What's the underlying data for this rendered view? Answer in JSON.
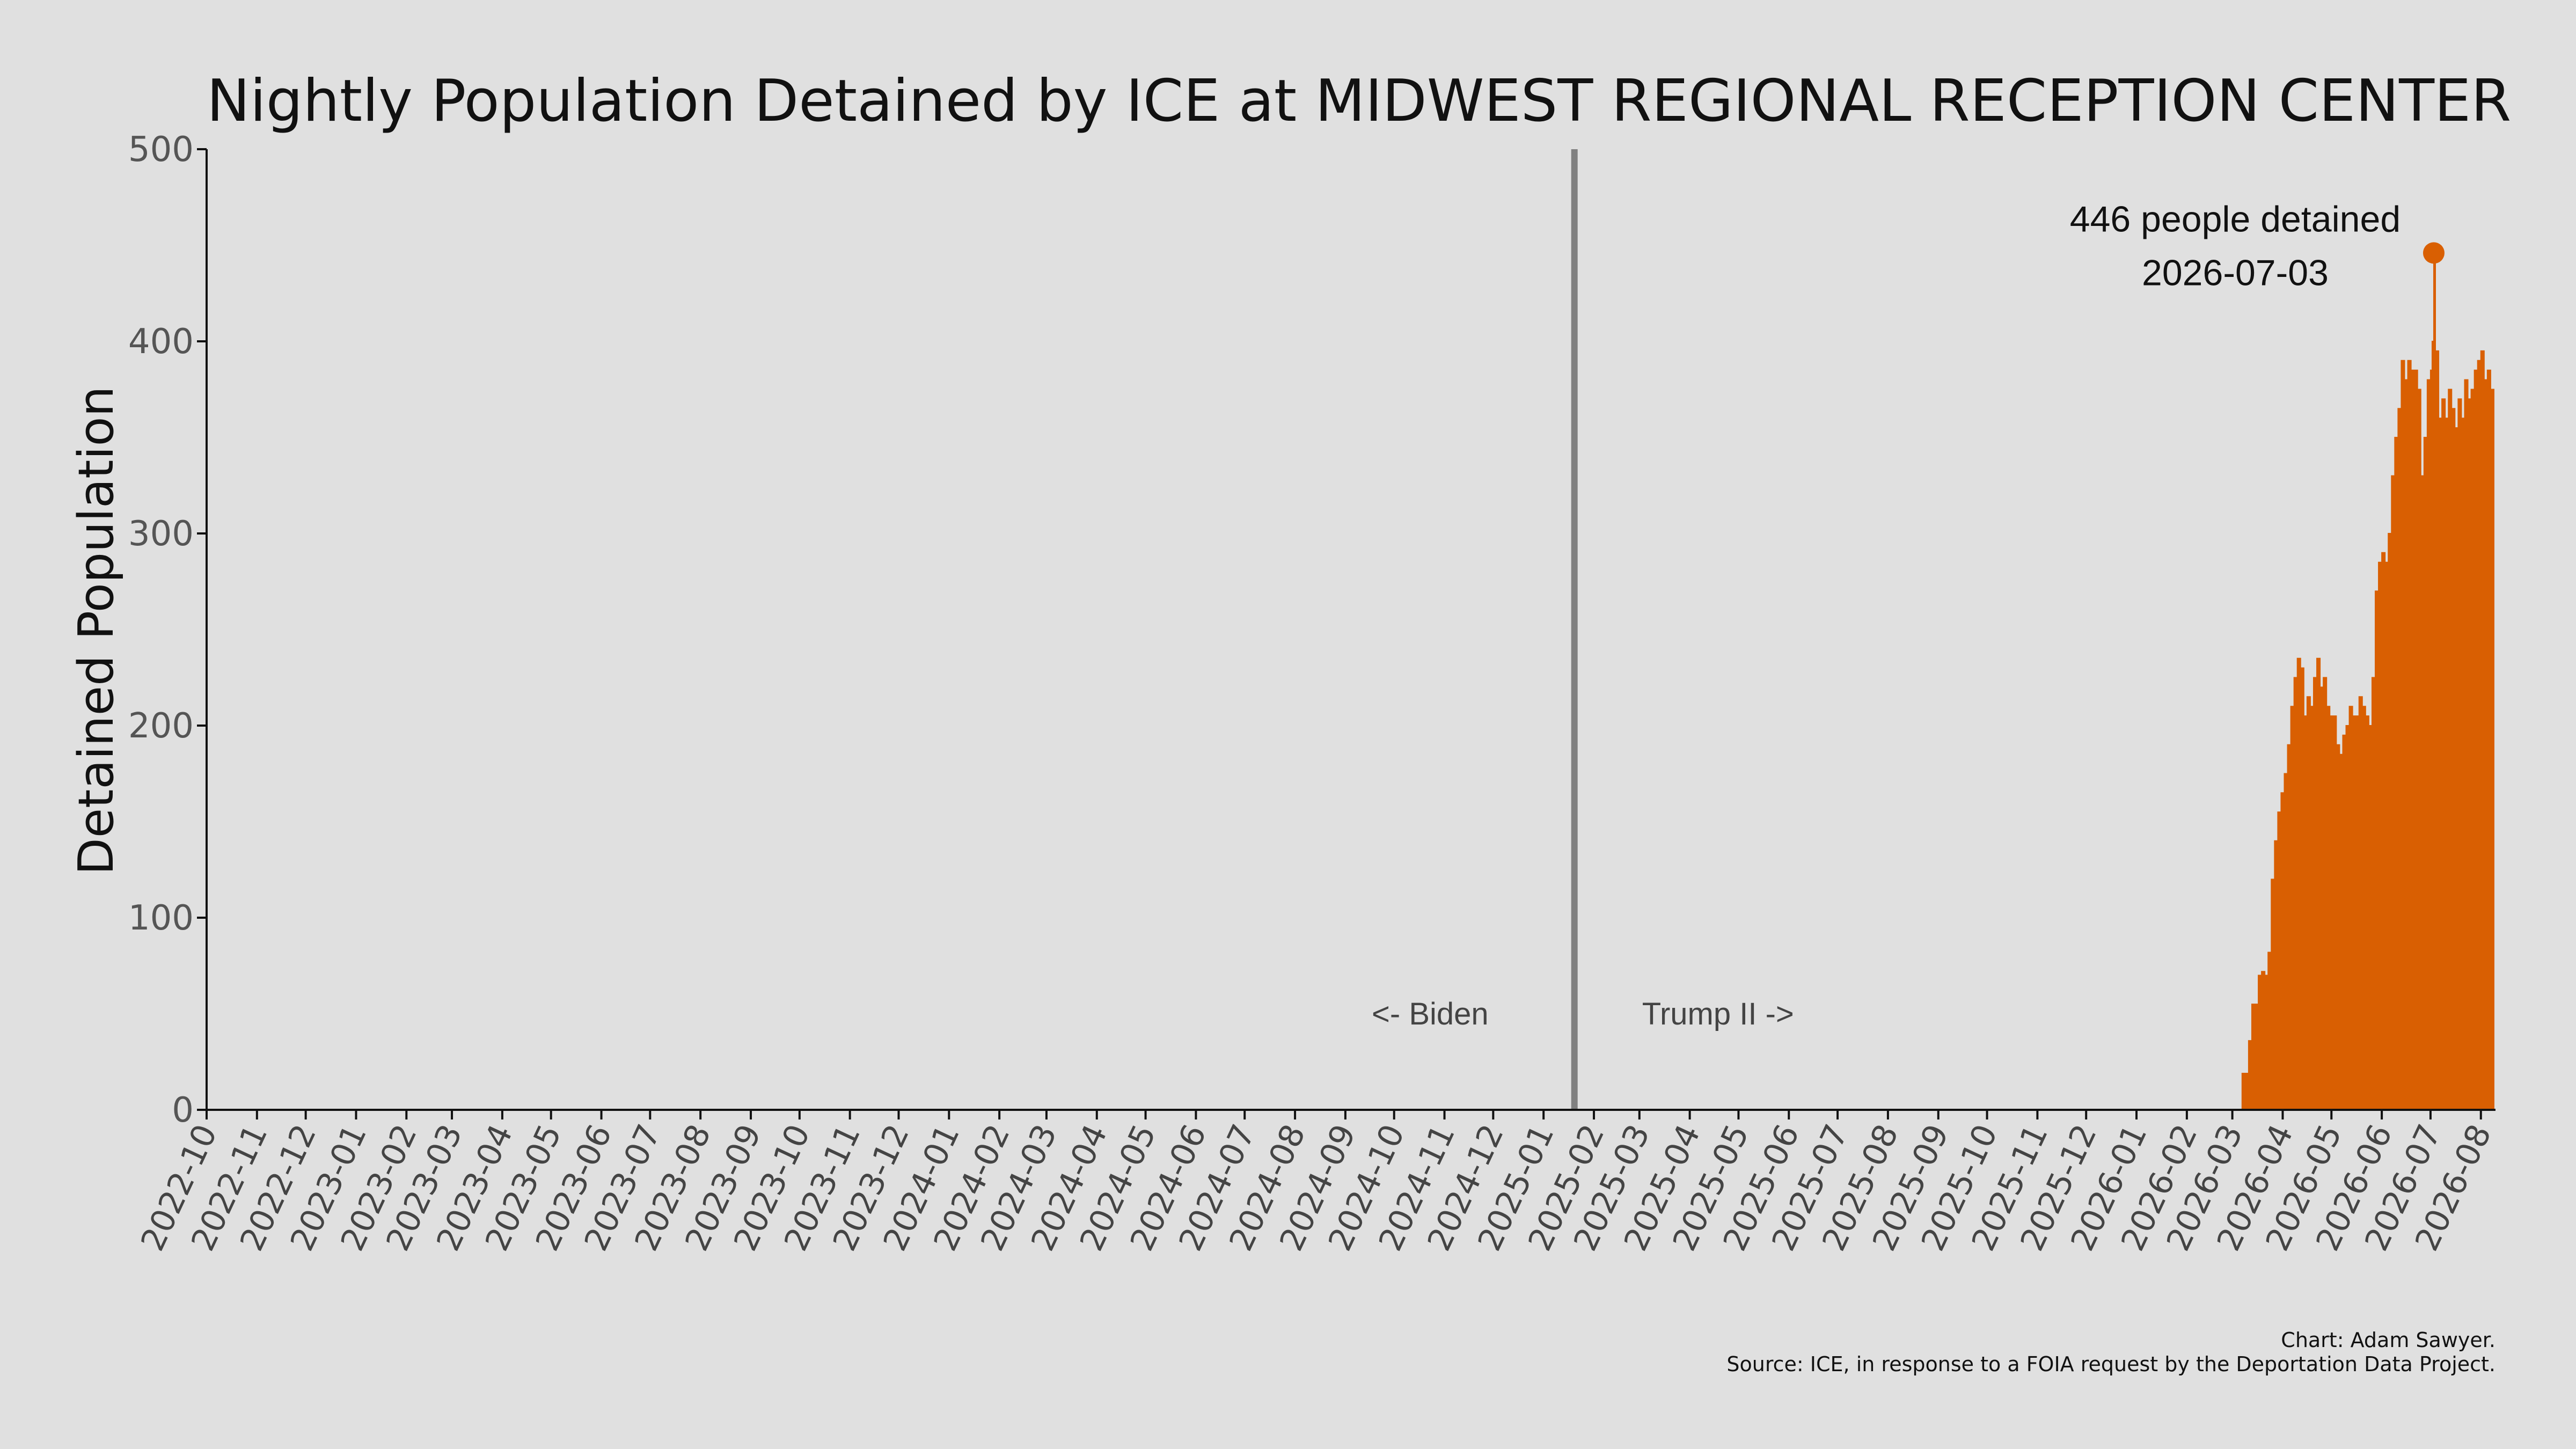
{
  "chart_data": {
    "type": "area",
    "title": "Nightly Population Detained by ICE at MIDWEST REGIONAL RECEPTION CENTER",
    "xlabel": "",
    "ylabel": "Detained Population",
    "ylim": [
      0,
      500
    ],
    "yticks": [
      0,
      100,
      200,
      300,
      400,
      500
    ],
    "x_start": "2022-10-01",
    "x_end": "2026-08-10",
    "xtick_labels": [
      "2022-10",
      "2022-11",
      "2022-12",
      "2023-01",
      "2023-02",
      "2023-03",
      "2023-04",
      "2023-05",
      "2023-06",
      "2023-07",
      "2023-08",
      "2023-09",
      "2023-10",
      "2023-11",
      "2023-12",
      "2024-01",
      "2024-02",
      "2024-03",
      "2024-04",
      "2024-05",
      "2024-06",
      "2024-07",
      "2024-08",
      "2024-09",
      "2024-10",
      "2024-11",
      "2024-12",
      "2025-01",
      "2025-02",
      "2025-03",
      "2025-04",
      "2025-05",
      "2025-06",
      "2025-07",
      "2025-08",
      "2025-09",
      "2025-10",
      "2025-11",
      "2025-12",
      "2026-01",
      "2026-02",
      "2026-03",
      "2026-04",
      "2026-05",
      "2026-06",
      "2026-07",
      "2026-08"
    ],
    "grid": false,
    "color": "#d95f02",
    "divider": {
      "date": "2025-01-20",
      "left_label": "<- Biden",
      "right_label": "Trump II ->",
      "color": "#808080"
    },
    "peak": {
      "date": "2026-07-03",
      "value": 446,
      "label_line1": "446 people detained",
      "label_line2": "2026-07-03"
    },
    "series": [
      {
        "x": [
          "2026-03-07",
          "2026-03-09",
          "2026-03-11",
          "2026-03-13",
          "2026-03-15",
          "2026-03-17",
          "2026-03-19",
          "2026-03-21",
          "2026-03-23",
          "2026-03-25",
          "2026-03-27",
          "2026-03-29",
          "2026-03-31",
          "2026-04-02",
          "2026-04-04",
          "2026-04-06",
          "2026-04-08",
          "2026-04-10",
          "2026-04-12",
          "2026-04-14",
          "2026-04-16",
          "2026-04-18",
          "2026-04-20",
          "2026-04-22",
          "2026-04-24",
          "2026-04-26",
          "2026-04-28",
          "2026-04-30",
          "2026-05-02",
          "2026-05-04",
          "2026-05-06",
          "2026-05-08",
          "2026-05-10",
          "2026-05-12",
          "2026-05-14",
          "2026-05-16",
          "2026-05-18",
          "2026-05-20",
          "2026-05-22",
          "2026-05-24",
          "2026-05-26",
          "2026-05-28",
          "2026-05-30",
          "2026-06-01",
          "2026-06-03",
          "2026-06-05",
          "2026-06-07",
          "2026-06-09",
          "2026-06-11",
          "2026-06-13",
          "2026-06-15",
          "2026-06-17",
          "2026-06-19",
          "2026-06-21",
          "2026-06-23",
          "2026-06-25",
          "2026-06-27",
          "2026-06-29",
          "2026-07-01",
          "2026-07-02",
          "2026-07-03",
          "2026-07-04",
          "2026-07-06",
          "2026-07-08",
          "2026-07-10",
          "2026-07-12",
          "2026-07-14",
          "2026-07-16",
          "2026-07-18",
          "2026-07-20",
          "2026-07-22",
          "2026-07-24",
          "2026-07-26",
          "2026-07-28",
          "2026-07-30",
          "2026-08-01",
          "2026-08-03",
          "2026-08-05",
          "2026-08-07"
        ],
        "values": [
          19,
          19,
          36,
          55,
          55,
          70,
          72,
          70,
          82,
          120,
          140,
          155,
          165,
          175,
          190,
          210,
          225,
          235,
          230,
          205,
          215,
          210,
          225,
          235,
          220,
          225,
          210,
          205,
          205,
          190,
          185,
          195,
          200,
          210,
          205,
          205,
          215,
          210,
          205,
          200,
          225,
          270,
          285,
          290,
          285,
          300,
          330,
          350,
          365,
          390,
          380,
          390,
          385,
          385,
          375,
          330,
          350,
          380,
          385,
          400,
          446,
          395,
          360,
          370,
          360,
          375,
          365,
          355,
          370,
          360,
          380,
          370,
          375,
          385,
          390,
          395,
          380,
          385,
          375
        ]
      }
    ]
  },
  "credit": {
    "line1": "Chart: Adam Sawyer.",
    "line2": "Source: ICE, in response to a FOIA request by the Deportation Data Project."
  }
}
